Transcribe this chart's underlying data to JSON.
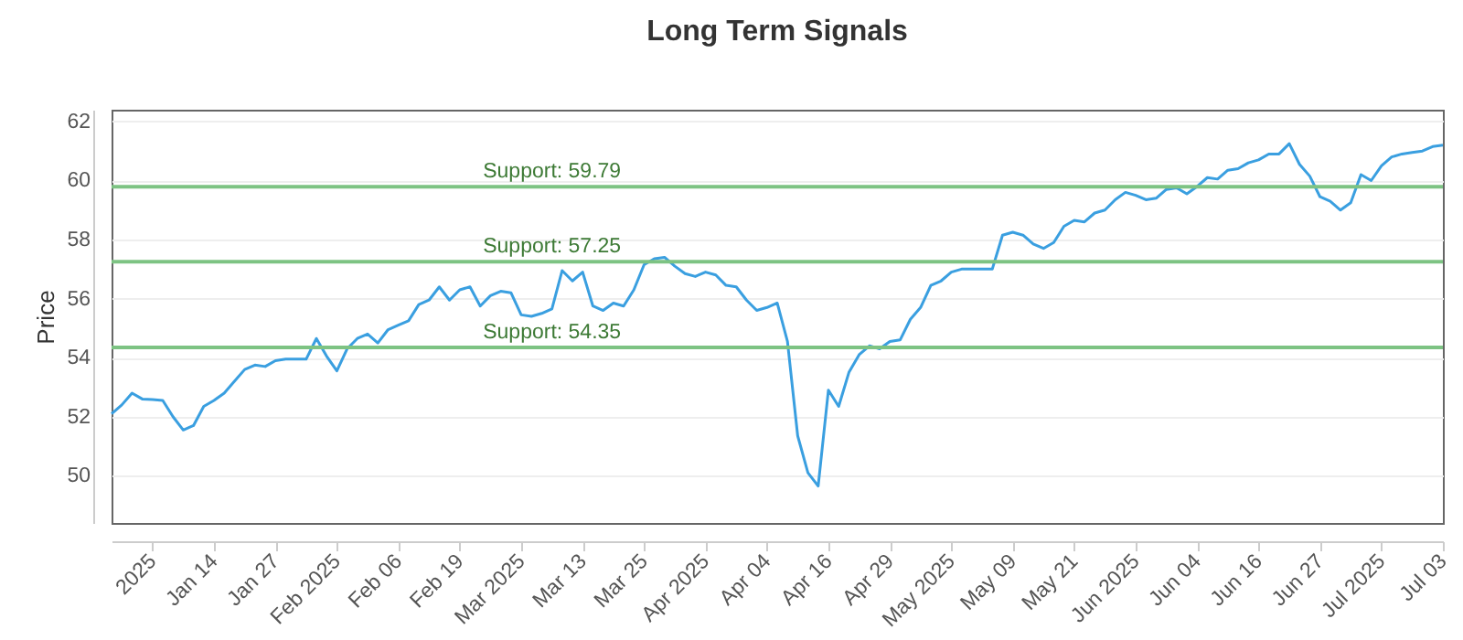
{
  "chart_data": {
    "type": "line",
    "title": "Long Term Signals",
    "ylabel": "Price",
    "categories": [
      null,
      null,
      null,
      null,
      "2025",
      null,
      null,
      null,
      null,
      null,
      "Jan 14",
      null,
      null,
      null,
      null,
      null,
      "Jan 27",
      null,
      null,
      null,
      null,
      null,
      "Feb 2025",
      null,
      null,
      null,
      null,
      null,
      "Feb 06",
      null,
      null,
      null,
      null,
      null,
      "Feb 19",
      null,
      null,
      null,
      null,
      null,
      "Mar 2025",
      null,
      null,
      null,
      null,
      null,
      "Mar 13",
      null,
      null,
      null,
      null,
      null,
      "Mar 25",
      null,
      null,
      null,
      null,
      null,
      "Apr 2025",
      null,
      null,
      null,
      null,
      null,
      "Apr 04",
      null,
      null,
      null,
      null,
      null,
      "Apr 16",
      null,
      null,
      null,
      null,
      null,
      "Apr 29",
      null,
      null,
      null,
      null,
      null,
      "May 2025",
      null,
      null,
      null,
      null,
      null,
      "May 09",
      null,
      null,
      null,
      null,
      null,
      "May 21",
      null,
      null,
      null,
      null,
      null,
      "Jun 2025",
      null,
      null,
      null,
      null,
      null,
      "Jun 04",
      null,
      null,
      null,
      null,
      null,
      "Jun 16",
      null,
      null,
      null,
      null,
      null,
      "Jun 27",
      null,
      null,
      null,
      null,
      null,
      "Jul 2025",
      null,
      null,
      null,
      null,
      null,
      "Jul 03"
    ],
    "series": [
      {
        "color": "#3a9fe0",
        "values": [
          52.1,
          52.4,
          52.8,
          52.6,
          52.58,
          52.55,
          52.0,
          51.55,
          51.7,
          52.35,
          52.55,
          52.8,
          53.2,
          53.6,
          53.75,
          53.7,
          53.9,
          53.95,
          53.95,
          53.95,
          54.65,
          54.05,
          53.55,
          54.3,
          54.65,
          54.8,
          54.5,
          54.95,
          55.1,
          55.25,
          55.8,
          55.95,
          56.4,
          55.95,
          56.3,
          56.4,
          55.75,
          56.1,
          56.25,
          56.2,
          55.45,
          55.4,
          55.5,
          55.65,
          56.95,
          56.6,
          56.9,
          55.75,
          55.6,
          55.85,
          55.75,
          56.3,
          57.15,
          57.35,
          57.4,
          57.1,
          56.85,
          56.75,
          56.9,
          56.8,
          56.45,
          56.4,
          55.95,
          55.6,
          55.7,
          55.85,
          54.55,
          51.35,
          50.1,
          49.65,
          52.9,
          52.35,
          53.5,
          54.1,
          54.4,
          54.3,
          54.55,
          54.6,
          55.3,
          55.7,
          56.45,
          56.6,
          56.9,
          57.0,
          57.0,
          57.0,
          57.0,
          58.15,
          58.25,
          58.15,
          57.85,
          57.7,
          57.9,
          58.45,
          58.65,
          58.6,
          58.9,
          59.0,
          59.35,
          59.6,
          59.5,
          59.35,
          59.4,
          59.7,
          59.75,
          59.55,
          59.8,
          60.1,
          60.05,
          60.35,
          60.4,
          60.6,
          60.7,
          60.9,
          60.9,
          61.25,
          60.55,
          60.15,
          59.45,
          59.3,
          59.0,
          59.25,
          60.2,
          60.0,
          60.5,
          60.8,
          60.9,
          60.95,
          61.0,
          61.15,
          61.2
        ]
      }
    ],
    "ylim": [
      48.4,
      62.4
    ],
    "yticks": [
      50,
      52,
      54,
      56,
      58,
      60,
      62
    ],
    "grid": "y",
    "ref_lines": [
      {
        "axis": "y",
        "value": 59.79,
        "label": "Support: 59.79",
        "color": "#7dc383"
      },
      {
        "axis": "y",
        "value": 57.25,
        "label": "Support: 57.25",
        "color": "#7dc383"
      },
      {
        "axis": "y",
        "value": 54.35,
        "label": "Support: 54.35",
        "color": "#7dc383"
      }
    ]
  }
}
